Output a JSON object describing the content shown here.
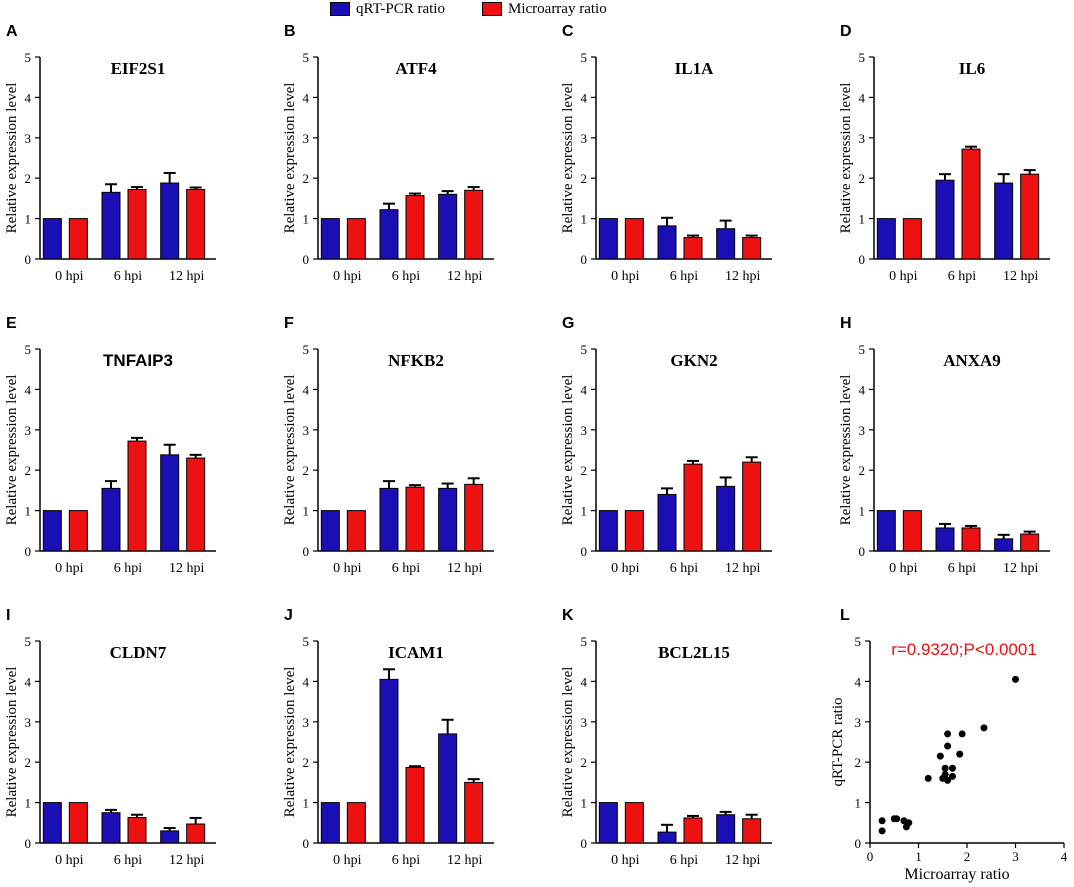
{
  "legend": [
    {
      "label": "qRT-PCR ratio",
      "color": "#1a0fb5"
    },
    {
      "label": "Microarray ratio",
      "color": "#ee1111"
    }
  ],
  "colors": {
    "qrt": "#1a0fb5",
    "micro": "#ee1111",
    "axis": "#000000",
    "annotation": "#ee1111"
  },
  "chart_data": [
    {
      "panel": "A",
      "type": "bar",
      "title": "EIF2S1",
      "title_style": "serif",
      "ylabel": "Relative expression level",
      "ylim": [
        0,
        5
      ],
      "yticks": [
        "0",
        "1",
        "2",
        "3",
        "4",
        "5"
      ],
      "categories": [
        "0 hpi",
        "6 hpi",
        "12 hpi"
      ],
      "series": [
        {
          "name": "qRT-PCR ratio",
          "values": [
            1.0,
            1.65,
            1.88
          ],
          "errors": [
            0,
            0.2,
            0.25
          ]
        },
        {
          "name": "Microarray ratio",
          "values": [
            1.0,
            1.72,
            1.72
          ],
          "errors": [
            0,
            0.06,
            0.05
          ]
        }
      ]
    },
    {
      "panel": "B",
      "type": "bar",
      "title": "ATF4",
      "title_style": "serif",
      "ylabel": "Relative expression level",
      "ylim": [
        0,
        5
      ],
      "yticks": [
        "0",
        "1",
        "2",
        "3",
        "4",
        "5"
      ],
      "categories": [
        "0 hpi",
        "6 hpi",
        "12 hpi"
      ],
      "series": [
        {
          "name": "qRT-PCR ratio",
          "values": [
            1.0,
            1.22,
            1.6
          ],
          "errors": [
            0,
            0.15,
            0.08
          ]
        },
        {
          "name": "Microarray ratio",
          "values": [
            1.0,
            1.57,
            1.7
          ],
          "errors": [
            0,
            0.05,
            0.08
          ]
        }
      ]
    },
    {
      "panel": "C",
      "type": "bar",
      "title": "IL1A",
      "title_style": "serif",
      "ylabel": "Relative expression level",
      "ylim": [
        0,
        5
      ],
      "yticks": [
        "0",
        "1",
        "2",
        "3",
        "4",
        "5"
      ],
      "categories": [
        "0 hpi",
        "6 hpi",
        "12 hpi"
      ],
      "series": [
        {
          "name": "qRT-PCR ratio",
          "values": [
            1.0,
            0.82,
            0.75
          ],
          "errors": [
            0,
            0.2,
            0.2
          ]
        },
        {
          "name": "Microarray ratio",
          "values": [
            1.0,
            0.53,
            0.53
          ],
          "errors": [
            0,
            0.05,
            0.05
          ]
        }
      ]
    },
    {
      "panel": "D",
      "type": "bar",
      "title": "IL6",
      "title_style": "serif",
      "ylabel": "Relative expression level",
      "ylim": [
        0,
        5
      ],
      "yticks": [
        "0",
        "1",
        "2",
        "3",
        "4",
        "5"
      ],
      "categories": [
        "0 hpi",
        "6 hpi",
        "12 hpi"
      ],
      "series": [
        {
          "name": "qRT-PCR ratio",
          "values": [
            1.0,
            1.95,
            1.88
          ],
          "errors": [
            0,
            0.15,
            0.22
          ]
        },
        {
          "name": "Microarray ratio",
          "values": [
            1.0,
            2.72,
            2.1
          ],
          "errors": [
            0,
            0.06,
            0.1
          ]
        }
      ]
    },
    {
      "panel": "E",
      "type": "bar",
      "title": "TNFAIP3",
      "title_style": "sans",
      "ylabel": "Relative expression level",
      "ylim": [
        0,
        5
      ],
      "yticks": [
        "0",
        "1",
        "2",
        "3",
        "4",
        "5"
      ],
      "categories": [
        "0 hpi",
        "6 hpi",
        "12 hpi"
      ],
      "series": [
        {
          "name": "qRT-PCR ratio",
          "values": [
            1.0,
            1.55,
            2.38
          ],
          "errors": [
            0,
            0.18,
            0.25
          ]
        },
        {
          "name": "Microarray ratio",
          "values": [
            1.0,
            2.72,
            2.3
          ],
          "errors": [
            0,
            0.08,
            0.08
          ]
        }
      ]
    },
    {
      "panel": "F",
      "type": "bar",
      "title": "NFKB2",
      "title_style": "serif",
      "ylabel": "Relative expression level",
      "ylim": [
        0,
        5
      ],
      "yticks": [
        "0",
        "1",
        "2",
        "3",
        "4",
        "5"
      ],
      "categories": [
        "0 hpi",
        "6 hpi",
        "12 hpi"
      ],
      "series": [
        {
          "name": "qRT-PCR ratio",
          "values": [
            1.0,
            1.55,
            1.55
          ],
          "errors": [
            0,
            0.18,
            0.12
          ]
        },
        {
          "name": "Microarray ratio",
          "values": [
            1.0,
            1.58,
            1.65
          ],
          "errors": [
            0,
            0.05,
            0.15
          ]
        }
      ]
    },
    {
      "panel": "G",
      "type": "bar",
      "title": "GKN2",
      "title_style": "serif",
      "ylabel": "Relative expression level",
      "ylim": [
        0,
        5
      ],
      "yticks": [
        "0",
        "1",
        "2",
        "3",
        "4",
        "5"
      ],
      "categories": [
        "0 hpi",
        "6 hpi",
        "12 hpi"
      ],
      "series": [
        {
          "name": "qRT-PCR ratio",
          "values": [
            1.0,
            1.4,
            1.6
          ],
          "errors": [
            0,
            0.15,
            0.22
          ]
        },
        {
          "name": "Microarray ratio",
          "values": [
            1.0,
            2.15,
            2.2
          ],
          "errors": [
            0,
            0.08,
            0.12
          ]
        }
      ]
    },
    {
      "panel": "H",
      "type": "bar",
      "title": "ANXA9",
      "title_style": "serif",
      "ylabel": "Relative expression level",
      "ylim": [
        0,
        5
      ],
      "yticks": [
        "0",
        "1",
        "2",
        "3",
        "4",
        "5"
      ],
      "categories": [
        "0 hpi",
        "6 hpi",
        "12 hpi"
      ],
      "series": [
        {
          "name": "qRT-PCR ratio",
          "values": [
            1.0,
            0.57,
            0.3
          ],
          "errors": [
            0,
            0.1,
            0.1
          ]
        },
        {
          "name": "Microarray ratio",
          "values": [
            1.0,
            0.57,
            0.42
          ],
          "errors": [
            0,
            0.05,
            0.06
          ]
        }
      ]
    },
    {
      "panel": "I",
      "type": "bar",
      "title": "CLDN7",
      "title_style": "serif",
      "ylabel": "Relative expression level",
      "ylim": [
        0,
        5
      ],
      "yticks": [
        "0",
        "1",
        "2",
        "3",
        "4",
        "5"
      ],
      "categories": [
        "0 hpi",
        "6 hpi",
        "12 hpi"
      ],
      "series": [
        {
          "name": "qRT-PCR ratio",
          "values": [
            1.0,
            0.75,
            0.3
          ],
          "errors": [
            0,
            0.07,
            0.07
          ]
        },
        {
          "name": "Microarray ratio",
          "values": [
            1.0,
            0.63,
            0.47
          ],
          "errors": [
            0,
            0.07,
            0.15
          ]
        }
      ]
    },
    {
      "panel": "J",
      "type": "bar",
      "title": "ICAM1",
      "title_style": "serif",
      "ylabel": "Relative expression level",
      "ylim": [
        0,
        5
      ],
      "yticks": [
        "0",
        "1",
        "2",
        "3",
        "4",
        "5"
      ],
      "categories": [
        "0 hpi",
        "6 hpi",
        "12 hpi"
      ],
      "series": [
        {
          "name": "qRT-PCR ratio",
          "values": [
            1.0,
            4.05,
            2.7
          ],
          "errors": [
            0,
            0.25,
            0.35
          ]
        },
        {
          "name": "Microarray ratio",
          "values": [
            1.0,
            1.87,
            1.5
          ],
          "errors": [
            0,
            0.03,
            0.08
          ]
        }
      ]
    },
    {
      "panel": "K",
      "type": "bar",
      "title": "BCL2L15",
      "title_style": "serif",
      "ylabel": "Relative expression level",
      "ylim": [
        0,
        5
      ],
      "yticks": [
        "0",
        "1",
        "2",
        "3",
        "4",
        "5"
      ],
      "categories": [
        "0 hpi",
        "6 hpi",
        "12 hpi"
      ],
      "series": [
        {
          "name": "qRT-PCR ratio",
          "values": [
            1.0,
            0.27,
            0.7
          ],
          "errors": [
            0,
            0.18,
            0.07
          ]
        },
        {
          "name": "Microarray ratio",
          "values": [
            1.0,
            0.62,
            0.6
          ],
          "errors": [
            0,
            0.05,
            0.1
          ]
        }
      ]
    },
    {
      "panel": "L",
      "type": "scatter",
      "annotation": "r=0.9320;P<0.0001",
      "xlabel": "Microarray ratio",
      "ylabel": "qRT-PCR ratio",
      "xlim": [
        0,
        4
      ],
      "ylim": [
        0,
        5
      ],
      "xticks": [
        "0",
        "1",
        "2",
        "3",
        "4"
      ],
      "yticks": [
        "0",
        "1",
        "2",
        "3",
        "4",
        "5"
      ],
      "points": [
        [
          0.25,
          0.3
        ],
        [
          0.25,
          0.55
        ],
        [
          0.5,
          0.6
        ],
        [
          0.55,
          0.6
        ],
        [
          0.7,
          0.55
        ],
        [
          0.75,
          0.4
        ],
        [
          0.8,
          0.5
        ],
        [
          1.2,
          1.6
        ],
        [
          1.5,
          1.6
        ],
        [
          1.55,
          1.7
        ],
        [
          1.6,
          1.55
        ],
        [
          1.55,
          1.85
        ],
        [
          1.7,
          1.65
        ],
        [
          1.7,
          1.85
        ],
        [
          1.85,
          2.2
        ],
        [
          1.45,
          2.15
        ],
        [
          1.6,
          2.4
        ],
        [
          1.6,
          2.7
        ],
        [
          1.9,
          2.7
        ],
        [
          2.35,
          2.85
        ],
        [
          3.0,
          4.05
        ]
      ]
    }
  ]
}
